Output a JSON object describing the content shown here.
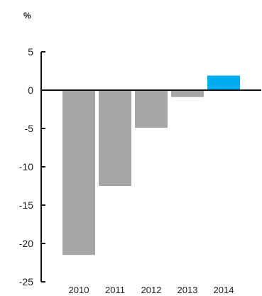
{
  "chart_data": {
    "type": "bar",
    "unit_label": "%",
    "categories": [
      "2010",
      "2011",
      "2012",
      "2013",
      "2014"
    ],
    "values": [
      -21.5,
      -12.5,
      -4.9,
      -0.9,
      1.9
    ],
    "colors": [
      "#a6a6a6",
      "#a6a6a6",
      "#a6a6a6",
      "#a6a6a6",
      "#00aeef"
    ],
    "ylim": [
      -25,
      5
    ],
    "yticks": [
      5,
      0,
      -5,
      -10,
      -15,
      -20,
      -25
    ],
    "ytick_labels": [
      "5",
      "0",
      "-5",
      "-10",
      "-15",
      "-20",
      "-25"
    ],
    "grid": false,
    "zero_line": true
  }
}
